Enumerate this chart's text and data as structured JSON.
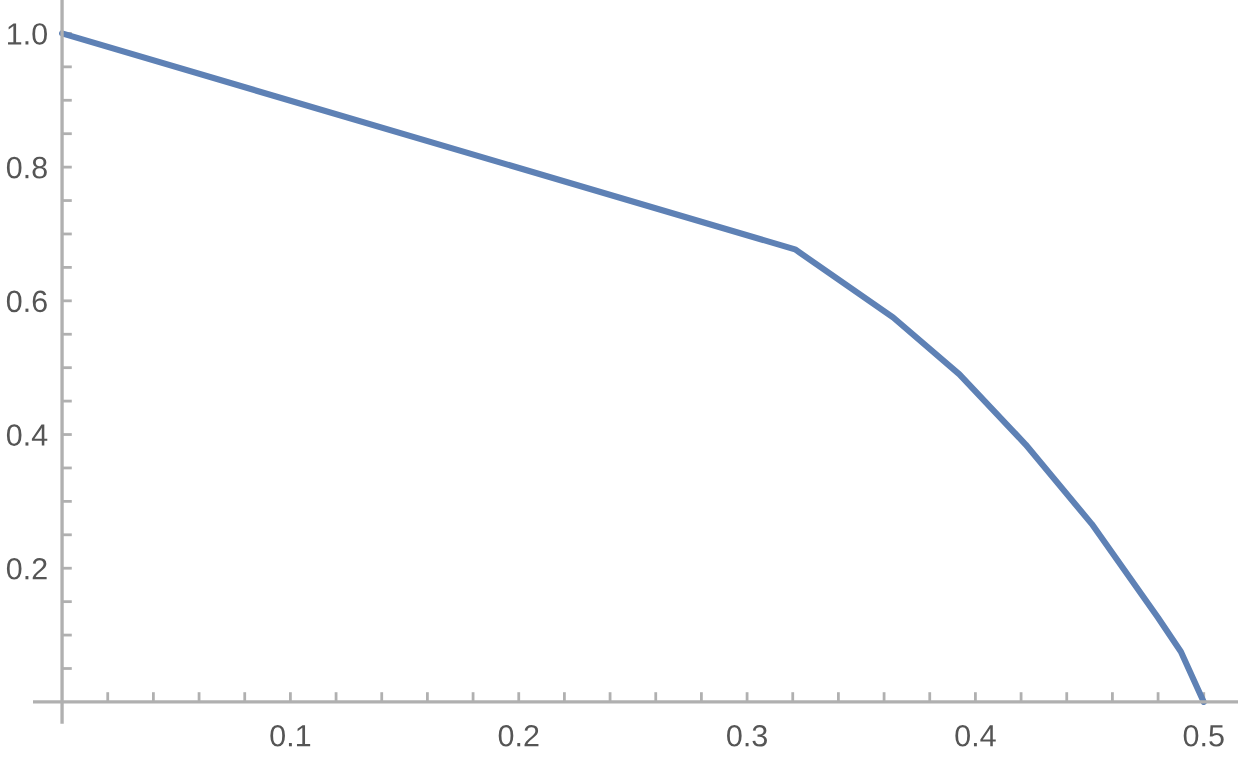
{
  "chart_data": {
    "type": "line",
    "x": [
      0,
      0.321,
      0.364,
      0.393,
      0.422,
      0.451,
      0.48,
      0.49,
      0.5
    ],
    "series": [
      {
        "color": "#5e81b5",
        "values": [
          1.0,
          0.677,
          0.575,
          0.49,
          0.385,
          0.266,
          0.126,
          0.075,
          0
        ]
      }
    ],
    "xlim": [
      -0.012,
      0.515
    ],
    "ylim": [
      -0.03,
      1.05
    ],
    "xticks": [
      {
        "value": 0.02,
        "label": null
      },
      {
        "value": 0.04,
        "label": null
      },
      {
        "value": 0.06,
        "label": null
      },
      {
        "value": 0.08,
        "label": null
      },
      0.1,
      {
        "value": 0.12,
        "label": null
      },
      {
        "value": 0.14,
        "label": null
      },
      {
        "value": 0.16,
        "label": null
      },
      {
        "value": 0.18,
        "label": null
      },
      0.2,
      {
        "value": 0.22,
        "label": null
      },
      {
        "value": 0.24,
        "label": null
      },
      {
        "value": 0.26,
        "label": null
      },
      {
        "value": 0.28,
        "label": null
      },
      0.3,
      {
        "value": 0.32,
        "label": null
      },
      {
        "value": 0.34,
        "label": null
      },
      {
        "value": 0.36,
        "label": null
      },
      {
        "value": 0.38,
        "label": null
      },
      0.4,
      {
        "value": 0.42,
        "label": null
      },
      {
        "value": 0.44,
        "label": null
      },
      {
        "value": 0.46,
        "label": null
      },
      {
        "value": 0.48,
        "label": null
      },
      0.5
    ],
    "yticks": [
      {
        "value": 0.05,
        "label": null
      },
      {
        "value": 0.1,
        "label": null
      },
      {
        "value": 0.15,
        "label": null
      },
      0.2,
      {
        "value": 0.25,
        "label": null
      },
      {
        "value": 0.3,
        "label": null
      },
      {
        "value": 0.35,
        "label": null
      },
      0.4,
      {
        "value": 0.45,
        "label": null
      },
      {
        "value": 0.5,
        "label": null
      },
      {
        "value": 0.55,
        "label": null
      },
      0.6,
      {
        "value": 0.65,
        "label": null
      },
      {
        "value": 0.7,
        "label": null
      },
      {
        "value": 0.75,
        "label": null
      },
      0.8,
      {
        "value": 0.85,
        "label": null
      },
      {
        "value": 0.9,
        "label": null
      },
      {
        "value": 0.95,
        "label": null
      },
      {
        "value": 1.0,
        "label": "1.0"
      }
    ],
    "grid": false,
    "legend": false,
    "marker": "none",
    "line_style": "solid"
  }
}
